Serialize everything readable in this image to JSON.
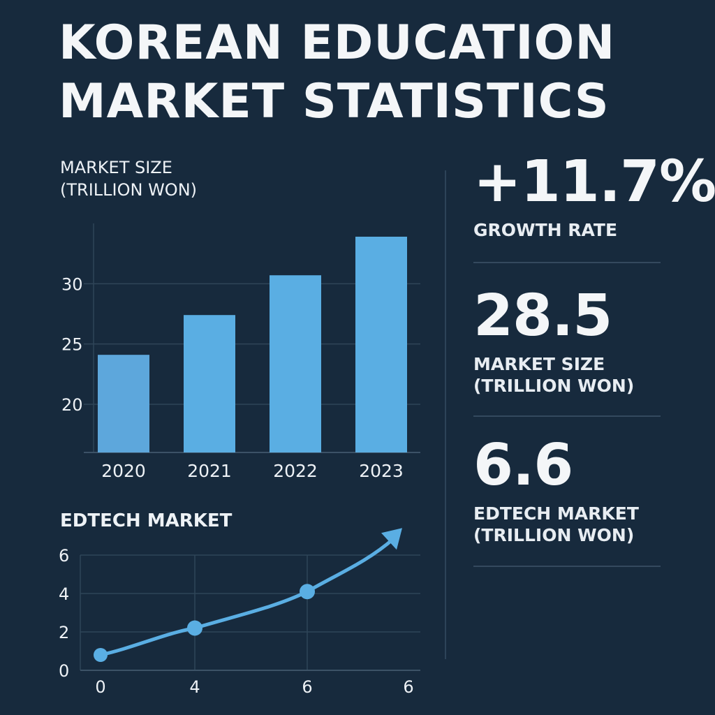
{
  "title": {
    "line1": "KOREAN EDUCATION",
    "line2": "MARKET STATISTICS"
  },
  "stats": [
    {
      "value": "+11.7%",
      "label_lines": [
        "GROWTH RATE"
      ]
    },
    {
      "value": "28.5",
      "label_lines": [
        "MARKET SIZE",
        "(TRILLION WON)"
      ]
    },
    {
      "value": "6.6",
      "label_lines": [
        "EDTECH MARKET",
        "(TRILLION WON)"
      ]
    }
  ],
  "colors": {
    "background": "#172a3d",
    "bar": "#5aaee3",
    "line": "#5aaee3",
    "grid": "#2f4558",
    "text": "#f2f5f8"
  },
  "chart_data": [
    {
      "type": "bar",
      "title_lines": [
        "MARKET SIZE",
        "(TRILLION WON)"
      ],
      "categories": [
        "2020",
        "2021",
        "2022",
        "2023"
      ],
      "values": [
        24.1,
        27.4,
        30.7,
        33.9
      ],
      "yticks": [
        20,
        25,
        30
      ],
      "ylim": [
        16,
        35
      ],
      "grid": true
    },
    {
      "type": "line",
      "title": "EDTECH MARKET",
      "xticks": [
        "0",
        "4",
        "6",
        "6"
      ],
      "yticks": [
        0,
        2,
        4,
        6
      ],
      "ylim": [
        0,
        6
      ],
      "points": [
        {
          "x": "0",
          "y": 0.8
        },
        {
          "x": "4",
          "y": 2.2
        },
        {
          "x": "6",
          "y": 4.1
        }
      ],
      "trend_end": {
        "y": 7.3
      },
      "grid": true
    }
  ]
}
